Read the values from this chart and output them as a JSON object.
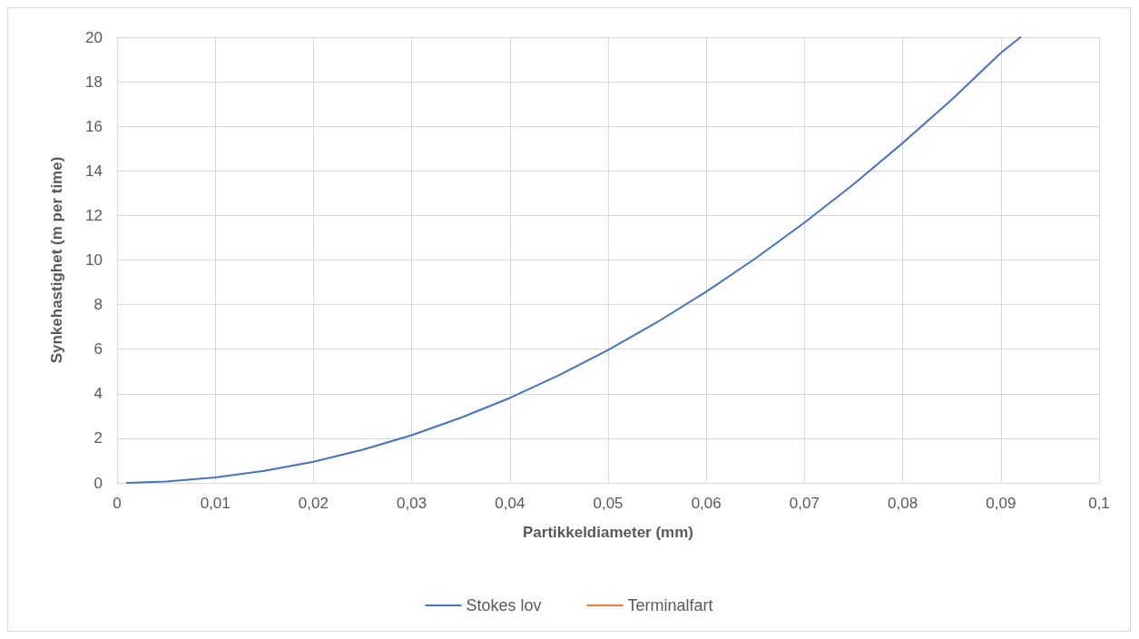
{
  "chart_data": {
    "type": "line",
    "xlabel": "Partikkeldiameter (mm)",
    "ylabel": "Synkehastighet (m per time)",
    "x": [
      0.001,
      0.005,
      0.01,
      0.015,
      0.02,
      0.025,
      0.03,
      0.035,
      0.04,
      0.045,
      0.05,
      0.055,
      0.06,
      0.065,
      0.07,
      0.075,
      0.08,
      0.085,
      0.09,
      0.092
    ],
    "series": [
      {
        "name": "Stokes lov",
        "color": "#4472c4",
        "values": [
          0.0,
          0.06,
          0.24,
          0.54,
          0.95,
          1.49,
          2.14,
          2.92,
          3.81,
          4.83,
          5.96,
          7.21,
          8.58,
          10.07,
          11.68,
          13.4,
          15.25,
          17.2,
          19.3,
          20.0
        ]
      },
      {
        "name": "Terminalfart",
        "color": "#ed7d31",
        "values": [
          null,
          null,
          null,
          null,
          null,
          null,
          null,
          null,
          null,
          null,
          null,
          null,
          null,
          null,
          null,
          null,
          null,
          null,
          null,
          null
        ]
      }
    ],
    "xlim": [
      0,
      0.1
    ],
    "xticks": [
      0,
      {
        "value": 0.01,
        "label": "0,01"
      },
      {
        "value": 0.02,
        "label": "0,02"
      },
      {
        "value": 0.03,
        "label": "0,03"
      },
      {
        "value": 0.04,
        "label": "0,04"
      },
      {
        "value": 0.05,
        "label": "0,05"
      },
      {
        "value": 0.06,
        "label": "0,06"
      },
      {
        "value": 0.07,
        "label": "0,07"
      },
      {
        "value": 0.08,
        "label": "0,08"
      },
      {
        "value": 0.09,
        "label": "0,09"
      },
      {
        "value": 0.1,
        "label": "0,1"
      }
    ],
    "ylim": [
      0,
      20
    ],
    "yticks": [
      0,
      2,
      4,
      6,
      8,
      10,
      12,
      14,
      16,
      18,
      20
    ],
    "grid": true,
    "legend": "bottom",
    "marker": "none",
    "line_style": "solid"
  }
}
